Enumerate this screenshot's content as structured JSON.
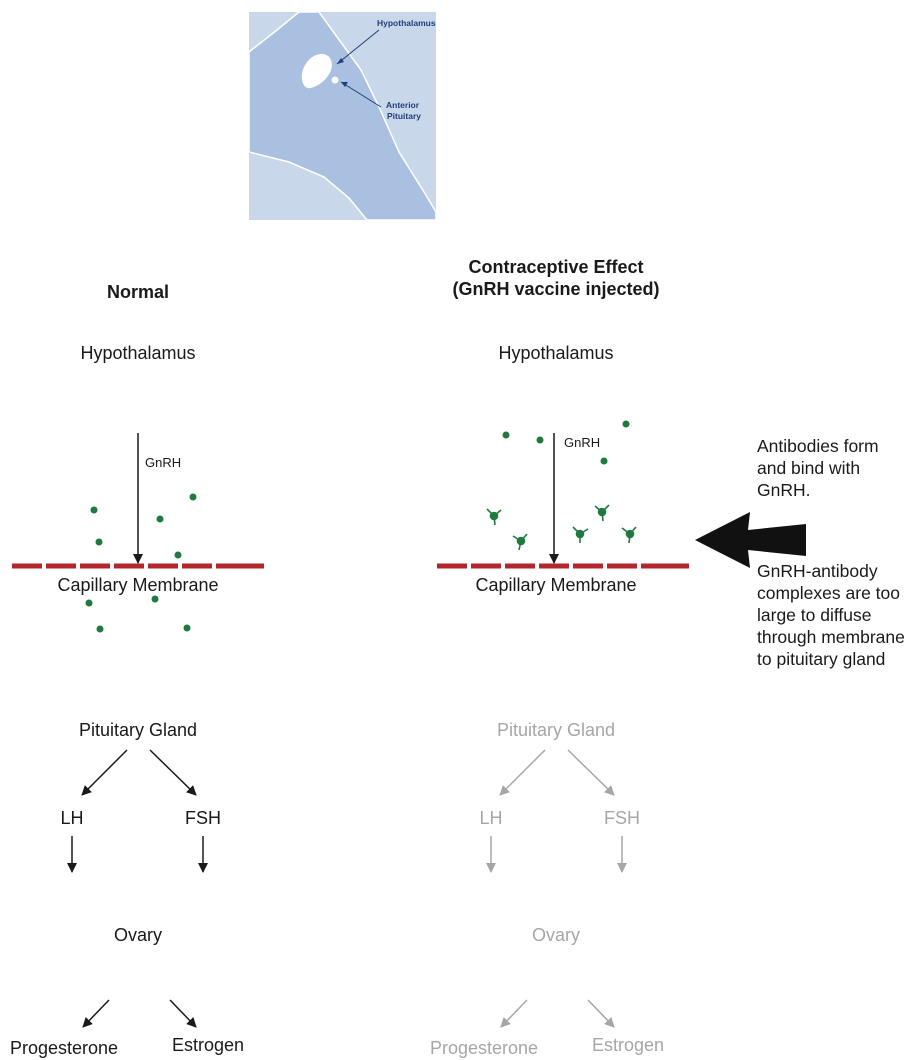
{
  "inset": {
    "hypothalamus_label": "Hypothalamus",
    "pituitary_label_line1": "Anterior",
    "pituitary_label_line2": "Pituitary"
  },
  "normal": {
    "heading": "Normal",
    "hypothalamus": "Hypothalamus",
    "gnrh": "GnRH",
    "membrane": "Capillary Membrane",
    "pituitary": "Pituitary Gland",
    "lh": "LH",
    "fsh": "FSH",
    "ovary": "Ovary",
    "progesterone": "Progesterone",
    "estrogen": "Estrogen"
  },
  "contraceptive": {
    "heading_line1": "Contraceptive Effect",
    "heading_line2": "(GnRH vaccine injected)",
    "hypothalamus": "Hypothalamus",
    "gnrh": "GnRH",
    "membrane": "Capillary Membrane",
    "pituitary": "Pituitary Gland",
    "lh": "LH",
    "fsh": "FSH",
    "ovary": "Ovary",
    "progesterone": "Progesterone",
    "estrogen": "Estrogen"
  },
  "notes": {
    "antibodies": "Antibodies form and bind with GnRH.",
    "complexes": "GnRH-antibody complexes are too large to diffuse through membrane to pituitary gland"
  },
  "colors": {
    "membrane": "#b3262b",
    "molecule": "#1f7a3f",
    "inset_bg": "#c9d7eb",
    "inset_horse": "#9db6db",
    "active_text": "#1a1a1a",
    "inactive_text": "#a6a6a6"
  }
}
